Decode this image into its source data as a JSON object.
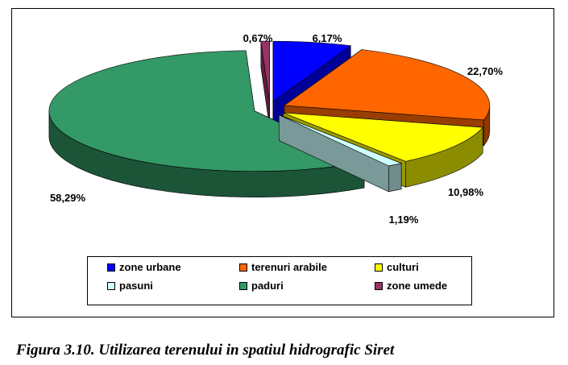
{
  "chart_data": {
    "type": "pie",
    "style": "3d-exploded",
    "categories": [
      "zone urbane",
      "terenuri arabile",
      "culturi",
      "pasuni",
      "paduri",
      "zone umede"
    ],
    "values": [
      6.17,
      22.7,
      10.98,
      1.19,
      58.29,
      0.67
    ],
    "value_labels": [
      "6,17%",
      "22,70%",
      "10,98%",
      "1,19%",
      "58,29%",
      "0,67%"
    ],
    "colors": [
      "#0000ff",
      "#ff6600",
      "#ffff00",
      "#ccffff",
      "#339966",
      "#993366"
    ],
    "legend_position": "bottom"
  },
  "legend": {
    "items": [
      {
        "label": "zone urbane",
        "color": "#0000ff"
      },
      {
        "label": "terenuri arabile",
        "color": "#ff6600"
      },
      {
        "label": "culturi",
        "color": "#ffff00"
      },
      {
        "label": "pasuni",
        "color": "#ccffff"
      },
      {
        "label": "paduri",
        "color": "#339966"
      },
      {
        "label": "zone umede",
        "color": "#993366"
      }
    ]
  },
  "caption": "Figura  3.10. Utilizarea terenului in spatiul hidrografic Siret"
}
